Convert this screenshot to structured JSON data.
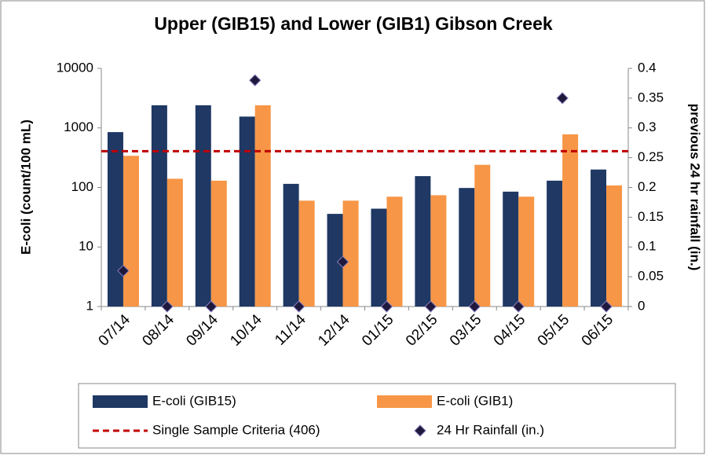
{
  "chart_data": {
    "type": "bar",
    "title": "Upper (GIB15) and Lower (GIB1) Gibson Creek",
    "ylabel": "E-coli (count/100 mL)",
    "y2label": "previous 24 hr rainfall (in.)",
    "categories": [
      "07/14",
      "08/14",
      "09/14",
      "10/14",
      "11/14",
      "12/14",
      "01/15",
      "02/15",
      "03/15",
      "04/15",
      "05/15",
      "06/15"
    ],
    "series": [
      {
        "name": "E-coli (GIB15)",
        "color": "#1f3864",
        "values": [
          850,
          2400,
          2400,
          1550,
          115,
          36,
          44,
          155,
          98,
          85,
          130,
          200
        ]
      },
      {
        "name": "E-coli (GIB1)",
        "color": "#f79646",
        "values": [
          340,
          140,
          130,
          2400,
          60,
          60,
          70,
          74,
          240,
          70,
          780,
          108
        ]
      },
      {
        "name": "Single Sample Criteria (406)",
        "color": "#c00000",
        "type": "hline",
        "value": 406
      },
      {
        "name": "24 Hr Rainfall (in.)",
        "color": "#1f1a3d",
        "type": "scatter",
        "axis": "y2",
        "values": [
          0.06,
          0,
          0,
          0.38,
          0,
          0.075,
          0,
          0,
          0,
          0,
          0.35,
          0
        ]
      }
    ],
    "ylim": [
      1,
      10000
    ],
    "yticks": [
      1,
      10,
      100,
      1000,
      10000
    ],
    "log": true,
    "y2lim": [
      0,
      0.4
    ],
    "y2ticks": [
      0,
      0.05,
      0.1,
      0.15,
      0.2,
      0.25,
      0.3,
      0.35,
      0.4
    ],
    "legend": "bottom"
  }
}
